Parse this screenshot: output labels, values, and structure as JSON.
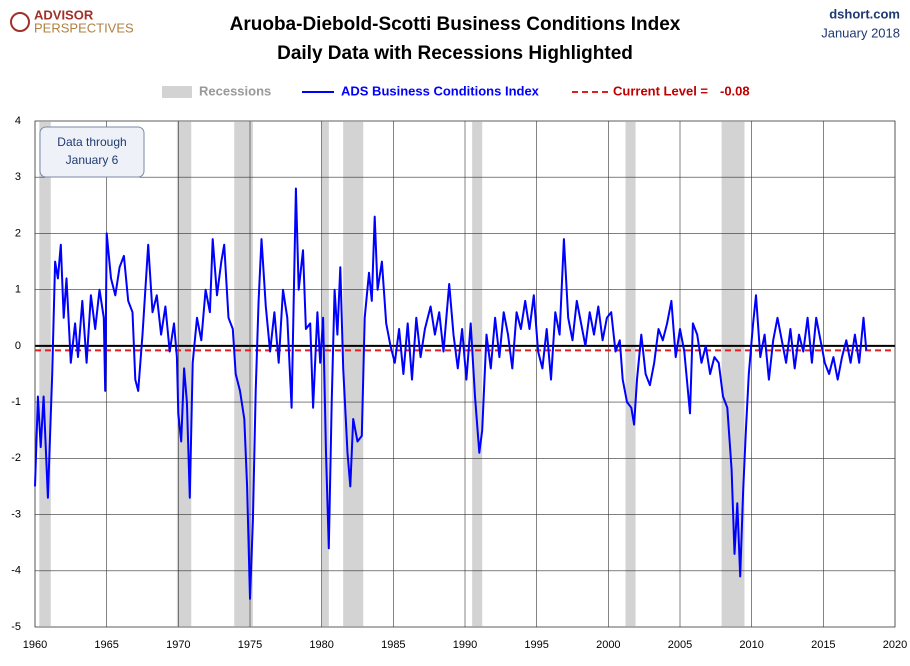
{
  "chart_data": {
    "type": "line",
    "title": "Aruoba-Diebold-Scotti Business Conditions Index",
    "subtitle": "Daily Data with Recessions Highlighted",
    "logo": [
      "ADVISOR",
      "PERSPECTIVES"
    ],
    "source": "dshort.com",
    "date": "January 2018",
    "annotation": [
      "Data through",
      "January 6"
    ],
    "recessions_name": "Recessions",
    "recessions_color": "#d3d3d3",
    "recessions": [
      [
        1960.3,
        1961.1
      ],
      [
        1969.9,
        1970.9
      ],
      [
        1973.9,
        1975.2
      ],
      [
        1980.0,
        1980.5
      ],
      [
        1981.5,
        1982.9
      ],
      [
        1990.5,
        1991.2
      ],
      [
        2001.2,
        2001.9
      ],
      [
        2007.9,
        2009.5
      ]
    ],
    "current_level": {
      "name": "Current Level =",
      "value": -0.08,
      "value_label": "-0.08",
      "color": "#e02020"
    },
    "xlim": [
      1960,
      2020
    ],
    "xticks": [
      1960,
      1965,
      1970,
      1975,
      1980,
      1985,
      1990,
      1995,
      2000,
      2005,
      2010,
      2015,
      2020
    ],
    "ylim": [
      -5,
      4
    ],
    "yticks": [
      -5,
      -4,
      -3,
      -2,
      -1,
      0,
      1,
      2,
      3,
      4
    ],
    "grid": true,
    "series": [
      {
        "name": "ADS Business Conditions Index",
        "color": "#0000ff",
        "x": [
          1960.0,
          1960.2,
          1960.4,
          1960.6,
          1960.9,
          1961.2,
          1961.4,
          1961.6,
          1961.8,
          1962.0,
          1962.2,
          1962.5,
          1962.8,
          1963.0,
          1963.3,
          1963.6,
          1963.9,
          1964.2,
          1964.5,
          1964.8,
          1964.9,
          1965.0,
          1965.3,
          1965.6,
          1965.9,
          1966.2,
          1966.5,
          1966.8,
          1967.0,
          1967.2,
          1967.5,
          1967.9,
          1968.2,
          1968.5,
          1968.8,
          1969.1,
          1969.4,
          1969.7,
          1969.9,
          1970.0,
          1970.2,
          1970.4,
          1970.6,
          1970.8,
          1971.0,
          1971.3,
          1971.6,
          1971.9,
          1972.2,
          1972.4,
          1972.7,
          1973.0,
          1973.2,
          1973.5,
          1973.8,
          1974.0,
          1974.3,
          1974.6,
          1974.8,
          1975.0,
          1975.2,
          1975.4,
          1975.6,
          1975.8,
          1976.1,
          1976.4,
          1976.7,
          1977.0,
          1977.3,
          1977.6,
          1977.9,
          1978.2,
          1978.4,
          1978.7,
          1978.9,
          1979.2,
          1979.4,
          1979.7,
          1979.9,
          1980.1,
          1980.3,
          1980.5,
          1980.7,
          1980.9,
          1981.1,
          1981.3,
          1981.5,
          1981.8,
          1982.0,
          1982.2,
          1982.5,
          1982.8,
          1983.0,
          1983.3,
          1983.5,
          1983.7,
          1983.9,
          1984.2,
          1984.5,
          1984.8,
          1985.1,
          1985.4,
          1985.7,
          1986.0,
          1986.3,
          1986.6,
          1986.9,
          1987.2,
          1987.6,
          1987.9,
          1988.2,
          1988.5,
          1988.9,
          1989.2,
          1989.5,
          1989.8,
          1990.1,
          1990.4,
          1990.7,
          1991.0,
          1991.2,
          1991.5,
          1991.8,
          1992.1,
          1992.4,
          1992.7,
          1993.0,
          1993.3,
          1993.6,
          1993.9,
          1994.2,
          1994.5,
          1994.8,
          1995.1,
          1995.4,
          1995.7,
          1996.0,
          1996.3,
          1996.6,
          1996.9,
          1997.2,
          1997.5,
          1997.8,
          1998.1,
          1998.4,
          1998.7,
          1999.0,
          1999.3,
          1999.6,
          1999.9,
          2000.2,
          2000.5,
          2000.8,
          2001.0,
          2001.3,
          2001.6,
          2001.8,
          2002.0,
          2002.3,
          2002.6,
          2002.9,
          2003.2,
          2003.5,
          2003.8,
          2004.1,
          2004.4,
          2004.7,
          2005.0,
          2005.3,
          2005.7,
          2005.9,
          2006.2,
          2006.5,
          2006.8,
          2007.1,
          2007.4,
          2007.7,
          2008.0,
          2008.3,
          2008.6,
          2008.8,
          2009.0,
          2009.2,
          2009.4,
          2009.6,
          2009.8,
          2010.1,
          2010.3,
          2010.6,
          2010.9,
          2011.2,
          2011.5,
          2011.8,
          2012.1,
          2012.4,
          2012.7,
          2013.0,
          2013.3,
          2013.6,
          2013.9,
          2014.2,
          2014.5,
          2014.8,
          2015.1,
          2015.4,
          2015.7,
          2016.0,
          2016.3,
          2016.6,
          2016.9,
          2017.2,
          2017.5,
          2017.8,
          2018.0
        ],
        "values": [
          -2.5,
          -0.9,
          -1.8,
          -0.9,
          -2.7,
          -0.5,
          1.5,
          1.2,
          1.8,
          0.5,
          1.2,
          -0.3,
          0.4,
          -0.2,
          0.8,
          -0.3,
          0.9,
          0.3,
          1.0,
          0.5,
          -0.8,
          2.0,
          1.2,
          0.9,
          1.4,
          1.6,
          0.8,
          0.6,
          -0.6,
          -0.8,
          0.2,
          1.8,
          0.6,
          0.9,
          0.2,
          0.7,
          -0.1,
          0.4,
          -0.2,
          -1.2,
          -1.7,
          -0.4,
          -1.0,
          -2.7,
          -0.3,
          0.5,
          0.1,
          1.0,
          0.6,
          1.9,
          0.9,
          1.5,
          1.8,
          0.5,
          0.3,
          -0.5,
          -0.8,
          -1.3,
          -2.5,
          -4.5,
          -3.1,
          -0.8,
          0.8,
          1.9,
          0.7,
          -0.1,
          0.6,
          -0.3,
          1.0,
          0.5,
          -1.1,
          2.8,
          1.0,
          1.7,
          0.3,
          0.4,
          -1.1,
          0.6,
          -0.3,
          0.5,
          -1.9,
          -3.6,
          -1.0,
          1.0,
          0.2,
          1.4,
          -0.4,
          -1.9,
          -2.5,
          -1.3,
          -1.7,
          -1.6,
          0.5,
          1.3,
          0.8,
          2.3,
          1.0,
          1.5,
          0.4,
          0.0,
          -0.3,
          0.3,
          -0.5,
          0.4,
          -0.6,
          0.5,
          -0.2,
          0.3,
          0.7,
          0.2,
          0.6,
          -0.1,
          1.1,
          0.2,
          -0.4,
          0.3,
          -0.6,
          0.4,
          -0.9,
          -1.9,
          -1.5,
          0.2,
          -0.4,
          0.5,
          -0.2,
          0.6,
          0.2,
          -0.4,
          0.6,
          0.3,
          0.8,
          0.3,
          0.9,
          -0.1,
          -0.4,
          0.3,
          -0.6,
          0.6,
          0.2,
          1.9,
          0.5,
          0.1,
          0.8,
          0.4,
          0.0,
          0.6,
          0.2,
          0.7,
          0.1,
          0.5,
          0.6,
          -0.1,
          0.1,
          -0.6,
          -1.0,
          -1.1,
          -1.4,
          -0.6,
          0.2,
          -0.5,
          -0.7,
          -0.3,
          0.3,
          0.1,
          0.4,
          0.8,
          -0.2,
          0.3,
          -0.1,
          -1.2,
          0.4,
          0.2,
          -0.3,
          0.0,
          -0.5,
          -0.2,
          -0.3,
          -0.9,
          -1.1,
          -2.2,
          -3.7,
          -2.8,
          -4.1,
          -2.6,
          -1.5,
          -0.5,
          0.4,
          0.9,
          -0.2,
          0.2,
          -0.6,
          0.1,
          0.5,
          0.1,
          -0.3,
          0.3,
          -0.4,
          0.2,
          -0.1,
          0.5,
          -0.3,
          0.5,
          0.1,
          -0.3,
          -0.5,
          -0.2,
          -0.6,
          -0.2,
          0.1,
          -0.3,
          0.2,
          -0.3,
          0.5,
          -0.08
        ]
      }
    ]
  }
}
